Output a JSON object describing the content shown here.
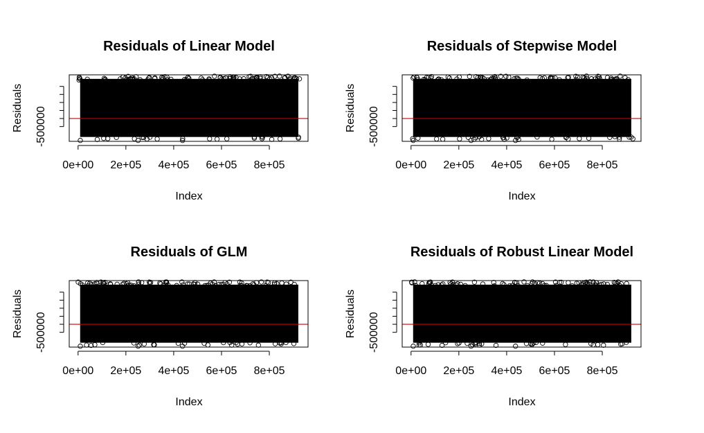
{
  "chart_data": [
    {
      "type": "scatter",
      "title": "Residuals of Linear Model",
      "xlabel": "Index",
      "ylabel": "Residuals",
      "x_ticks": [
        0,
        200000,
        400000,
        600000,
        800000
      ],
      "x_tick_labels": [
        "0e+00",
        "2e+05",
        "4e+05",
        "6e+05",
        "8e+05"
      ],
      "y_ticks": [
        -500000,
        0,
        500000,
        1000000,
        1500000,
        2000000
      ],
      "y_tick_labels": [
        "-500000",
        "",
        "",
        "",
        "",
        ""
      ],
      "xlim": [
        -37000,
        962000
      ],
      "ylim": [
        -1420000,
        2720000
      ],
      "n_points": 930000,
      "residual_band": [
        -1320000,
        2640000
      ],
      "reference_line": {
        "y": 0,
        "color": "#cc0000"
      }
    },
    {
      "type": "scatter",
      "title": "Residuals of Stepwise Model",
      "xlabel": "Index",
      "ylabel": "Residuals",
      "x_ticks": [
        0,
        200000,
        400000,
        600000,
        800000
      ],
      "x_tick_labels": [
        "0e+00",
        "2e+05",
        "4e+05",
        "6e+05",
        "8e+05"
      ],
      "y_ticks": [
        -500000,
        0,
        500000,
        1000000,
        1500000,
        2000000
      ],
      "y_tick_labels": [
        "-500000",
        "",
        "",
        "",
        "",
        ""
      ],
      "xlim": [
        -37000,
        962000
      ],
      "ylim": [
        -1420000,
        2720000
      ],
      "n_points": 930000,
      "residual_band": [
        -1320000,
        2640000
      ],
      "reference_line": {
        "y": 0,
        "color": "#cc0000"
      }
    },
    {
      "type": "scatter",
      "title": "Residuals of GLM",
      "xlabel": "Index",
      "ylabel": "Residuals",
      "x_ticks": [
        0,
        200000,
        400000,
        600000,
        800000
      ],
      "x_tick_labels": [
        "0e+00",
        "2e+05",
        "4e+05",
        "6e+05",
        "8e+05"
      ],
      "y_ticks": [
        -500000,
        0,
        500000,
        1000000,
        1500000,
        2000000
      ],
      "y_tick_labels": [
        "-500000",
        "",
        "",
        "",
        "",
        ""
      ],
      "xlim": [
        -37000,
        962000
      ],
      "ylim": [
        -1420000,
        2720000
      ],
      "n_points": 930000,
      "residual_band": [
        -1320000,
        2640000
      ],
      "reference_line": {
        "y": 0,
        "color": "#cc0000"
      }
    },
    {
      "type": "scatter",
      "title": "Residuals of Robust Linear Model",
      "xlabel": "Index",
      "ylabel": "Residuals",
      "x_ticks": [
        0,
        200000,
        400000,
        600000,
        800000
      ],
      "x_tick_labels": [
        "0e+00",
        "2e+05",
        "4e+05",
        "6e+05",
        "8e+05"
      ],
      "y_ticks": [
        -500000,
        0,
        500000,
        1000000,
        1500000,
        2000000
      ],
      "y_tick_labels": [
        "-500000",
        "",
        "",
        "",
        "",
        ""
      ],
      "xlim": [
        -37000,
        962000
      ],
      "ylim": [
        -1420000,
        2720000
      ],
      "n_points": 930000,
      "residual_band": [
        -1320000,
        2640000
      ],
      "reference_line": {
        "y": 0,
        "color": "#cc0000"
      }
    }
  ]
}
